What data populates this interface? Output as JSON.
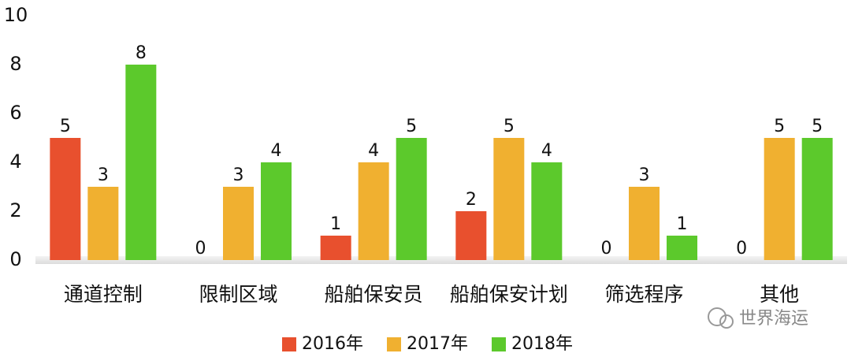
{
  "chart_data": {
    "type": "bar",
    "categories": [
      "通道控制",
      "限制区域",
      "船舶保安员",
      "船舶保安计划",
      "筛选程序",
      "其他"
    ],
    "series": [
      {
        "name": "2016年",
        "color": "#e8502e",
        "values": [
          5,
          0,
          1,
          2,
          0,
          0
        ]
      },
      {
        "name": "2017年",
        "color": "#f0b030",
        "values": [
          3,
          3,
          4,
          5,
          3,
          5
        ]
      },
      {
        "name": "2018年",
        "color": "#5cc92c",
        "values": [
          8,
          4,
          5,
          4,
          1,
          5
        ]
      }
    ],
    "ylim": [
      0,
      10
    ],
    "yticks": [
      0,
      2,
      4,
      6,
      8,
      10
    ],
    "legend": "bottom",
    "watermark": "世界海运"
  }
}
